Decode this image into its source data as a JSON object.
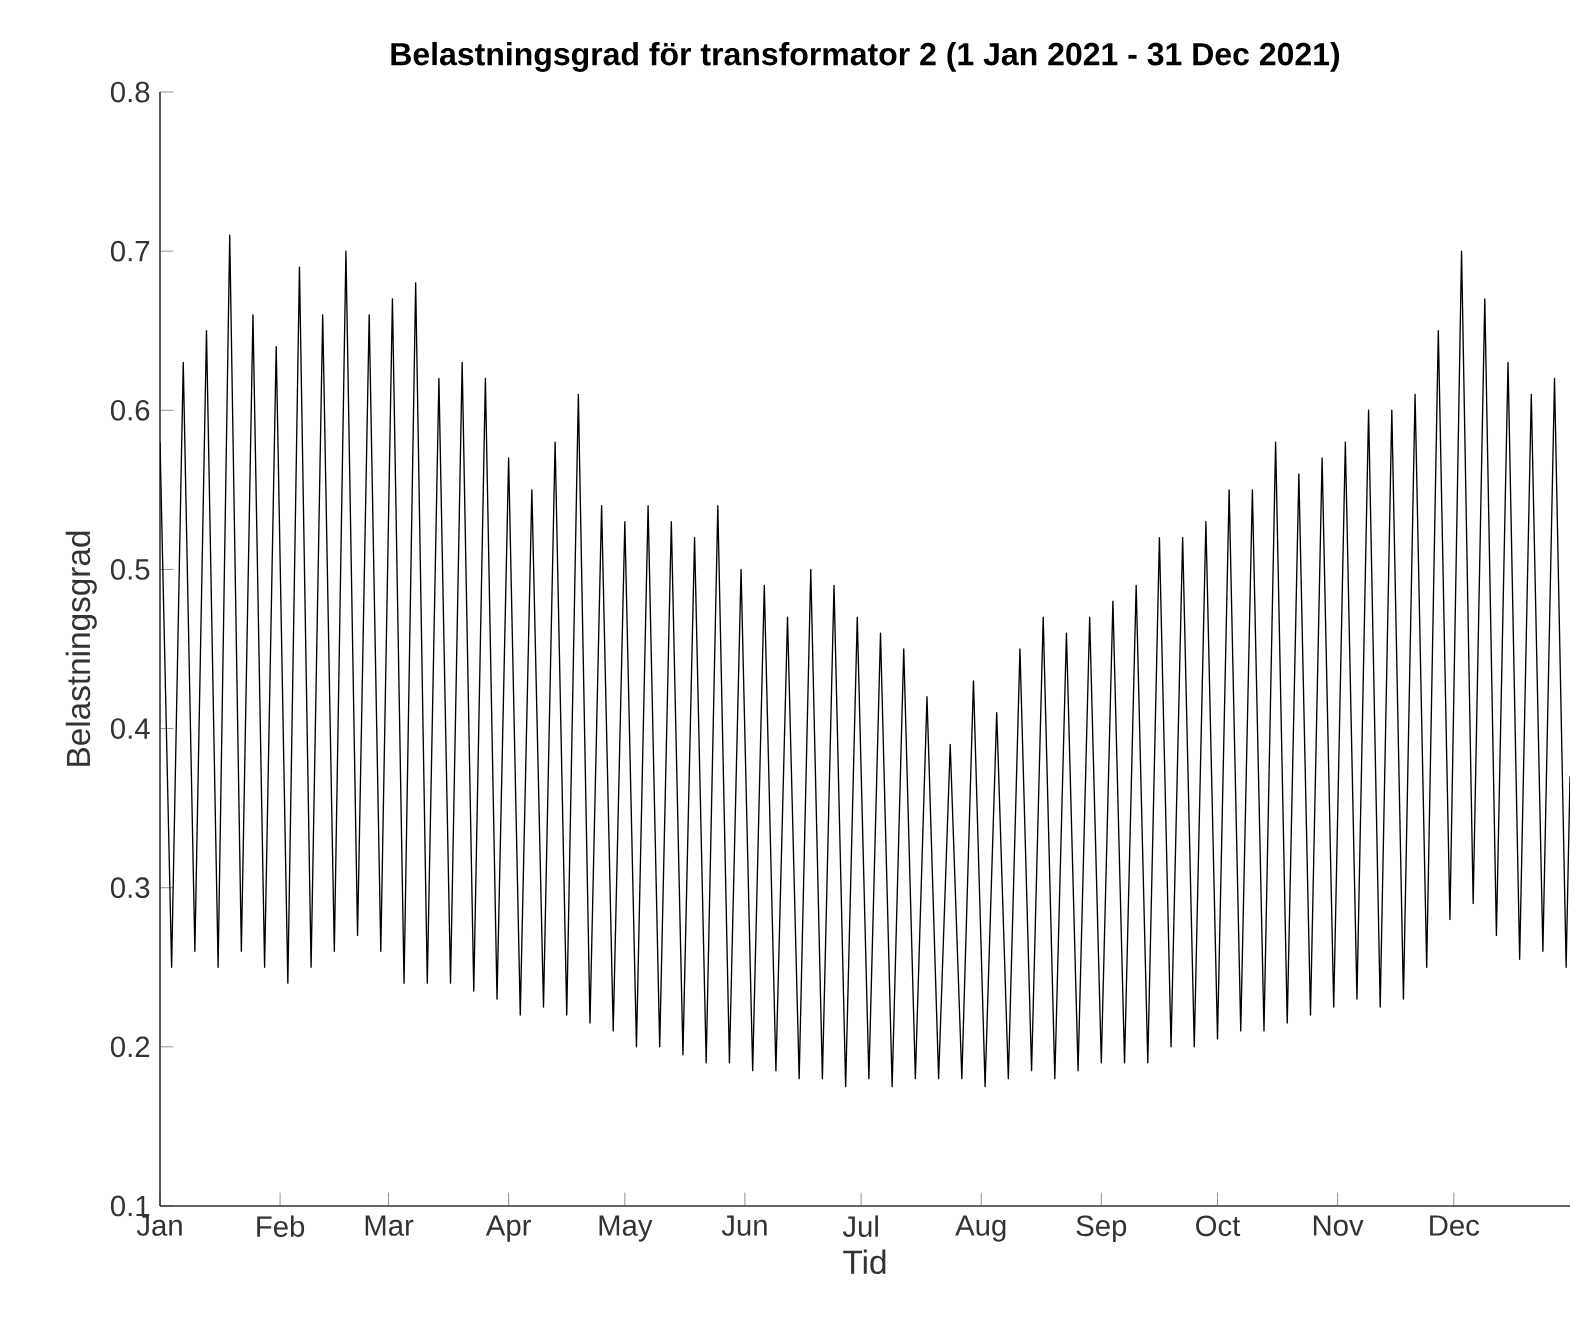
{
  "chart_data": {
    "type": "line",
    "title": "Belastningsgrad för transformator 2 (1 Jan 2021 - 31 Dec 2021)",
    "xlabel": "Tid",
    "ylabel": "Belastningsgrad",
    "color": "#000000",
    "marker": "none",
    "grid": false,
    "xlim": [
      "2021-01-01",
      "2021-12-31"
    ],
    "xticks": [
      {
        "value": "2021-01-01",
        "label": "Jan"
      },
      {
        "value": "2021-02-01",
        "label": "Feb"
      },
      {
        "value": "2021-03-01",
        "label": "Mar"
      },
      {
        "value": "2021-04-01",
        "label": "Apr"
      },
      {
        "value": "2021-05-01",
        "label": "May"
      },
      {
        "value": "2021-06-01",
        "label": "Jun"
      },
      {
        "value": "2021-07-01",
        "label": "Jul"
      },
      {
        "value": "2021-08-01",
        "label": "Aug"
      },
      {
        "value": "2021-09-01",
        "label": "Sep"
      },
      {
        "value": "2021-10-01",
        "label": "Oct"
      },
      {
        "value": "2021-11-01",
        "label": "Nov"
      },
      {
        "value": "2021-12-01",
        "label": "Dec"
      }
    ],
    "ylim": [
      0.1,
      0.8
    ],
    "yticks": [
      0.1,
      0.2,
      0.3,
      0.4,
      0.5,
      0.6,
      0.7,
      0.8
    ],
    "x": [
      "2021-01-01",
      "2021-01-04",
      "2021-01-07",
      "2021-01-10",
      "2021-01-13",
      "2021-01-16",
      "2021-01-19",
      "2021-01-22",
      "2021-01-25",
      "2021-01-28",
      "2021-01-31",
      "2021-02-03",
      "2021-02-06",
      "2021-02-09",
      "2021-02-12",
      "2021-02-15",
      "2021-02-18",
      "2021-02-21",
      "2021-02-24",
      "2021-02-27",
      "2021-03-02",
      "2021-03-05",
      "2021-03-08",
      "2021-03-11",
      "2021-03-14",
      "2021-03-17",
      "2021-03-20",
      "2021-03-23",
      "2021-03-26",
      "2021-03-29",
      "2021-04-01",
      "2021-04-04",
      "2021-04-07",
      "2021-04-10",
      "2021-04-13",
      "2021-04-16",
      "2021-04-19",
      "2021-04-22",
      "2021-04-25",
      "2021-04-28",
      "2021-05-01",
      "2021-05-04",
      "2021-05-07",
      "2021-05-10",
      "2021-05-13",
      "2021-05-16",
      "2021-05-19",
      "2021-05-22",
      "2021-05-25",
      "2021-05-28",
      "2021-05-31",
      "2021-06-03",
      "2021-06-06",
      "2021-06-09",
      "2021-06-12",
      "2021-06-15",
      "2021-06-18",
      "2021-06-21",
      "2021-06-24",
      "2021-06-27",
      "2021-06-30",
      "2021-07-03",
      "2021-07-06",
      "2021-07-09",
      "2021-07-12",
      "2021-07-15",
      "2021-07-18",
      "2021-07-21",
      "2021-07-24",
      "2021-07-27",
      "2021-07-30",
      "2021-08-02",
      "2021-08-05",
      "2021-08-08",
      "2021-08-11",
      "2021-08-14",
      "2021-08-17",
      "2021-08-20",
      "2021-08-23",
      "2021-08-26",
      "2021-08-29",
      "2021-09-01",
      "2021-09-04",
      "2021-09-07",
      "2021-09-10",
      "2021-09-13",
      "2021-09-16",
      "2021-09-19",
      "2021-09-22",
      "2021-09-25",
      "2021-09-28",
      "2021-10-01",
      "2021-10-04",
      "2021-10-07",
      "2021-10-10",
      "2021-10-13",
      "2021-10-16",
      "2021-10-19",
      "2021-10-22",
      "2021-10-25",
      "2021-10-28",
      "2021-10-31",
      "2021-11-03",
      "2021-11-06",
      "2021-11-09",
      "2021-11-12",
      "2021-11-15",
      "2021-11-18",
      "2021-11-21",
      "2021-11-24",
      "2021-11-27",
      "2021-11-30",
      "2021-12-03",
      "2021-12-06",
      "2021-12-09",
      "2021-12-12",
      "2021-12-15",
      "2021-12-18",
      "2021-12-21",
      "2021-12-24",
      "2021-12-27",
      "2021-12-30",
      "2021-12-31"
    ],
    "values": [
      0.58,
      0.25,
      0.63,
      0.26,
      0.65,
      0.25,
      0.71,
      0.26,
      0.66,
      0.25,
      0.64,
      0.24,
      0.69,
      0.25,
      0.66,
      0.26,
      0.7,
      0.27,
      0.66,
      0.26,
      0.67,
      0.24,
      0.68,
      0.24,
      0.62,
      0.24,
      0.63,
      0.235,
      0.62,
      0.23,
      0.57,
      0.22,
      0.55,
      0.225,
      0.58,
      0.22,
      0.61,
      0.215,
      0.54,
      0.21,
      0.53,
      0.2,
      0.54,
      0.2,
      0.53,
      0.195,
      0.52,
      0.19,
      0.54,
      0.19,
      0.5,
      0.185,
      0.49,
      0.185,
      0.47,
      0.18,
      0.5,
      0.18,
      0.49,
      0.175,
      0.47,
      0.18,
      0.46,
      0.175,
      0.45,
      0.18,
      0.42,
      0.18,
      0.39,
      0.18,
      0.43,
      0.175,
      0.41,
      0.18,
      0.45,
      0.185,
      0.47,
      0.18,
      0.46,
      0.185,
      0.47,
      0.19,
      0.48,
      0.19,
      0.49,
      0.19,
      0.52,
      0.2,
      0.52,
      0.2,
      0.53,
      0.205,
      0.55,
      0.21,
      0.55,
      0.21,
      0.58,
      0.215,
      0.56,
      0.22,
      0.57,
      0.225,
      0.58,
      0.23,
      0.6,
      0.225,
      0.6,
      0.23,
      0.61,
      0.25,
      0.65,
      0.28,
      0.7,
      0.29,
      0.67,
      0.27,
      0.63,
      0.255,
      0.61,
      0.26,
      0.62,
      0.25,
      0.37
    ]
  }
}
